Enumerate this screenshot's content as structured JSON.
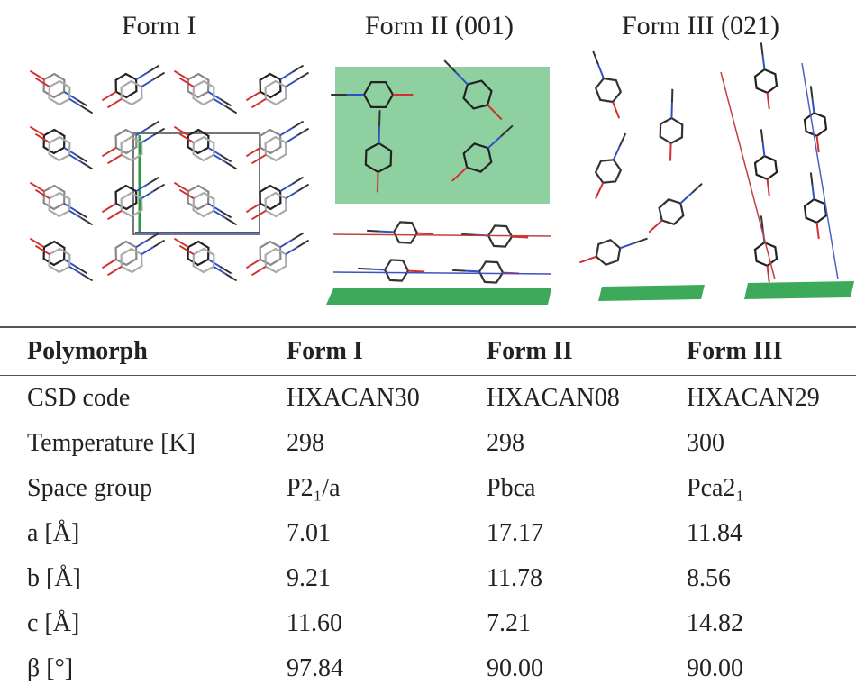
{
  "panels": [
    {
      "title": "Form I"
    },
    {
      "title": "Form II (001)"
    },
    {
      "title": "Form III (021)"
    }
  ],
  "table": {
    "header": [
      "Polymorph",
      "Form I",
      "Form II",
      "Form III"
    ],
    "rows": [
      [
        "CSD code",
        "HXACAN30",
        "HXACAN08",
        "HXACAN29"
      ],
      [
        "Temperature [K]",
        "298",
        "298",
        "300"
      ],
      [
        "Space group",
        "P2₁/a",
        "Pbca",
        "Pca2₁"
      ],
      [
        "a [Å]",
        "7.01",
        "17.17",
        "11.84"
      ],
      [
        "b [Å]",
        "9.21",
        "11.78",
        "8.56"
      ],
      [
        "c [Å]",
        "11.60",
        "7.21",
        "14.82"
      ],
      [
        "β [°]",
        "97.84",
        "90.00",
        "90.00"
      ]
    ]
  }
}
